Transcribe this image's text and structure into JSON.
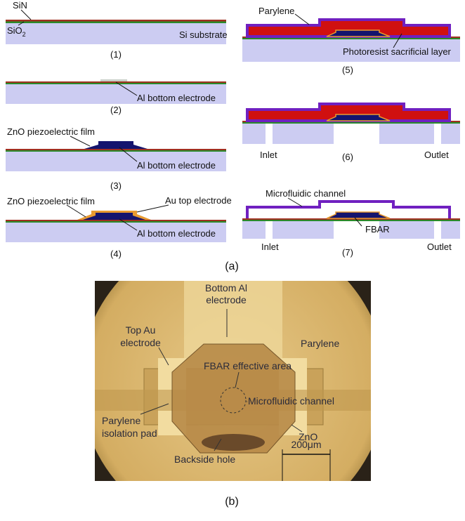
{
  "panel_a": {
    "caption": "(a)",
    "steps": [
      {
        "number": "(1)",
        "sin": "SiN",
        "sio2": {
          "text": "SiO",
          "sub": "2"
        },
        "substrate": "Si substrate"
      },
      {
        "number": "(2)",
        "al": "Al bottom electrode"
      },
      {
        "number": "(3)",
        "zno": "ZnO piezoelectric film",
        "al": "Al bottom electrode"
      },
      {
        "number": "(4)",
        "zno": "ZnO piezoelectric film",
        "au": "Au top electrode",
        "al": "Al bottom electrode"
      },
      {
        "number": "(5)",
        "parylene": "Parylene",
        "photoresist": "Photoresist sacrificial layer"
      },
      {
        "number": "(6)",
        "inlet": "Inlet",
        "outlet": "Outlet"
      },
      {
        "number": "(7)",
        "channel": "Microfluidic channel",
        "fbar": "FBAR",
        "inlet": "Inlet",
        "outlet": "Outlet"
      }
    ]
  },
  "panel_b": {
    "caption": "(b)",
    "bottom_al": [
      "Bottom Al",
      "electrode"
    ],
    "top_au": [
      "Top Au",
      "electrode"
    ],
    "parylene": "Parylene",
    "fbar_area": "FBAR effective area",
    "channel": "Microfluidic channel",
    "isolation_pad": [
      "Parylene",
      "isolation pad"
    ],
    "zno": "ZnO",
    "backside_hole": "Backside hole",
    "scale_bar": "200μm"
  }
}
